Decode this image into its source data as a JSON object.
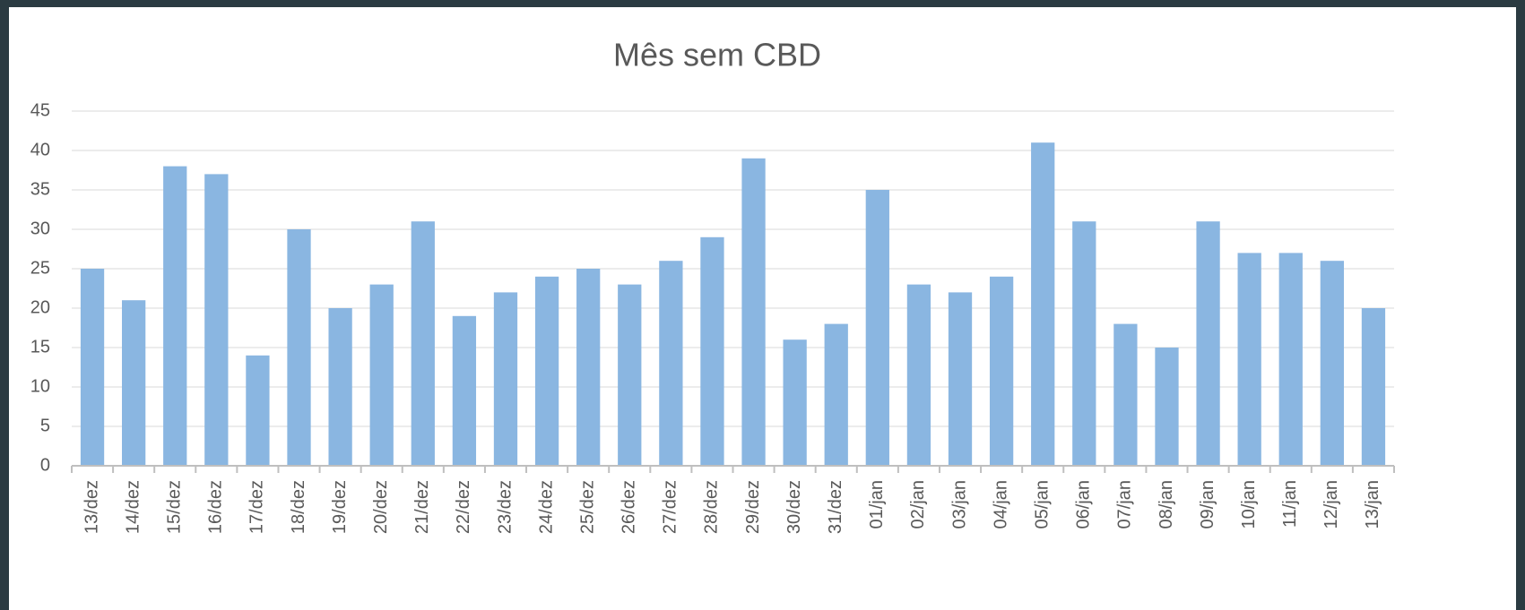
{
  "chart_data": {
    "type": "bar",
    "title": "Mês sem CBD",
    "categories": [
      "13/dez",
      "14/dez",
      "15/dez",
      "16/dez",
      "17/dez",
      "18/dez",
      "19/dez",
      "20/dez",
      "21/dez",
      "22/dez",
      "23/dez",
      "24/dez",
      "25/dez",
      "26/dez",
      "27/dez",
      "28/dez",
      "29/dez",
      "30/dez",
      "31/dez",
      "01/jan",
      "02/jan",
      "03/jan",
      "04/jan",
      "05/jan",
      "06/jan",
      "07/jan",
      "08/jan",
      "09/jan",
      "10/jan",
      "11/jan",
      "12/jan",
      "13/jan"
    ],
    "values": [
      25,
      21,
      38,
      37,
      14,
      30,
      20,
      23,
      31,
      19,
      22,
      24,
      25,
      23,
      26,
      29,
      39,
      16,
      18,
      35,
      23,
      22,
      24,
      41,
      31,
      18,
      15,
      31,
      27,
      27,
      26,
      20
    ],
    "color": "#8ab6e1",
    "ylim": [
      0,
      45
    ],
    "yticks": [
      0,
      5,
      10,
      15,
      20,
      25,
      30,
      35,
      40,
      45
    ],
    "grid": true
  }
}
